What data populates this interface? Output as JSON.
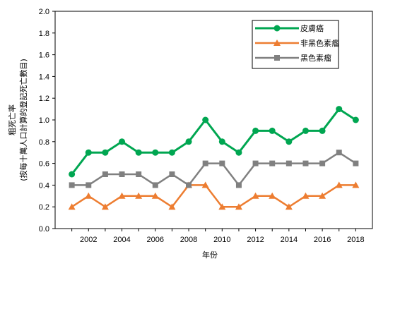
{
  "chart_data": {
    "type": "line",
    "xlabel": "年份",
    "ylabel_line1": "粗死亡率",
    "ylabel_line2": "(按每十萬人口計算的登記死亡數目)",
    "ylim": [
      0,
      2.0
    ],
    "yticks": [
      "0.0",
      "0.2",
      "0.4",
      "0.6",
      "0.8",
      "1.0",
      "1.2",
      "1.4",
      "1.6",
      "1.8",
      "2.0"
    ],
    "xlim": [
      2000,
      2019
    ],
    "xticks": [
      "2002",
      "2004",
      "2006",
      "2008",
      "2010",
      "2012",
      "2014",
      "2016",
      "2018"
    ],
    "x": [
      2001,
      2002,
      2003,
      2004,
      2005,
      2006,
      2007,
      2008,
      2009,
      2010,
      2011,
      2012,
      2013,
      2014,
      2015,
      2016,
      2017,
      2018
    ],
    "series": [
      {
        "name": "皮膚癌",
        "color": "#00a651",
        "marker": "circle",
        "values": [
          0.5,
          0.7,
          0.7,
          0.8,
          0.7,
          0.7,
          0.7,
          0.8,
          1.0,
          0.8,
          0.7,
          0.9,
          0.9,
          0.8,
          0.9,
          0.9,
          1.1,
          1.0
        ]
      },
      {
        "name": "非黑色素瘤",
        "color": "#ed7d31",
        "marker": "triangle",
        "values": [
          0.2,
          0.3,
          0.2,
          0.3,
          0.3,
          0.3,
          0.2,
          0.4,
          0.4,
          0.2,
          0.2,
          0.3,
          0.3,
          0.2,
          0.3,
          0.3,
          0.4,
          0.4
        ]
      },
      {
        "name": "黑色素瘤",
        "color": "#808080",
        "marker": "square",
        "values": [
          0.4,
          0.4,
          0.5,
          0.5,
          0.5,
          0.4,
          0.5,
          0.4,
          0.6,
          0.6,
          0.4,
          0.6,
          0.6,
          0.6,
          0.6,
          0.6,
          0.7,
          0.6
        ]
      }
    ],
    "grid": false,
    "legend": "top-right"
  }
}
